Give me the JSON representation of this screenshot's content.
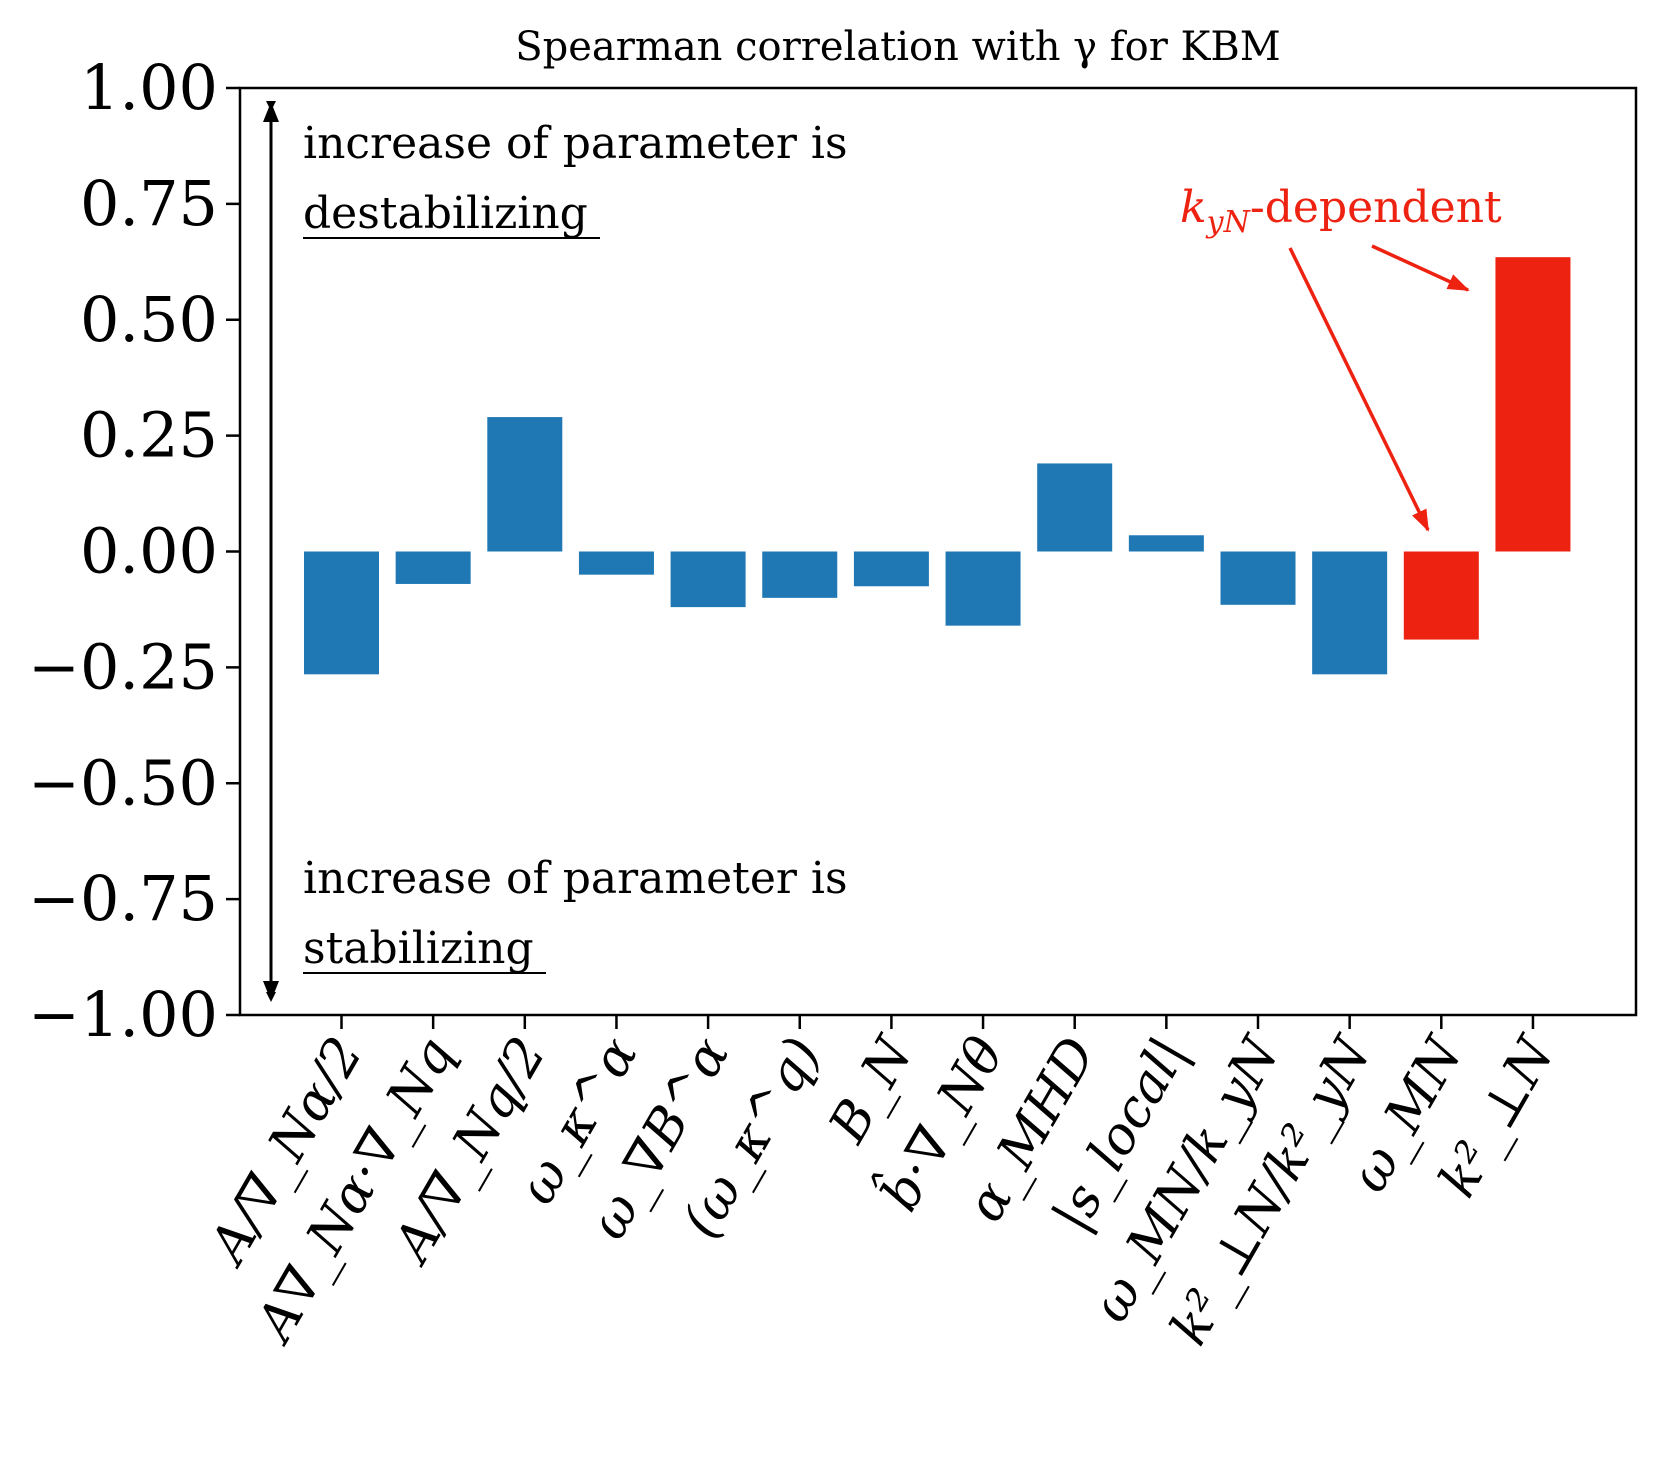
{
  "chart_data": {
    "type": "bar",
    "title": "Spearman correlation with γ for KBM",
    "xlabel": "",
    "ylabel": "",
    "ylim": [
      -1.0,
      1.0
    ],
    "yticks": [
      "1.00",
      "0.75",
      "0.50",
      "0.25",
      "0.00",
      "−0.25",
      "−0.50",
      "−0.75",
      "−1.00"
    ],
    "ytick_values": [
      1.0,
      0.75,
      0.5,
      0.25,
      0.0,
      -0.25,
      -0.5,
      -0.75,
      -1.0
    ],
    "grid": false,
    "categories": [
      "A/∇_Nα/2",
      "A∇_Nα·∇_Nq",
      "A/∇_Nq/2",
      "ω_κ^α",
      "ω_∇B^α",
      "(ω_κ^q)",
      "B_N",
      "b̂·∇_Nθ",
      "α_MHD",
      "|s_local|",
      "ω_MN/k_yN",
      "k²_⊥N/k²_yN",
      "ω_MN",
      "k²_⊥N"
    ],
    "values": [
      -0.265,
      -0.07,
      0.29,
      -0.05,
      -0.12,
      -0.1,
      -0.075,
      -0.16,
      0.19,
      0.035,
      -0.115,
      -0.265,
      -0.19,
      0.635
    ],
    "colors": [
      "#1f77b4",
      "#1f77b4",
      "#1f77b4",
      "#1f77b4",
      "#1f77b4",
      "#1f77b4",
      "#1f77b4",
      "#1f77b4",
      "#1f77b4",
      "#1f77b4",
      "#1f77b4",
      "#1f77b4",
      "#ee2211",
      "#ee2211"
    ],
    "annotations": {
      "top_line1": "increase of parameter is",
      "top_line2": "destabilizing",
      "bottom_line1": "increase of parameter is",
      "bottom_line2": "stabilizing",
      "kyn_label_main": "k",
      "kyn_label_sub": "yN",
      "kyn_label_rest": "-dependent"
    }
  }
}
